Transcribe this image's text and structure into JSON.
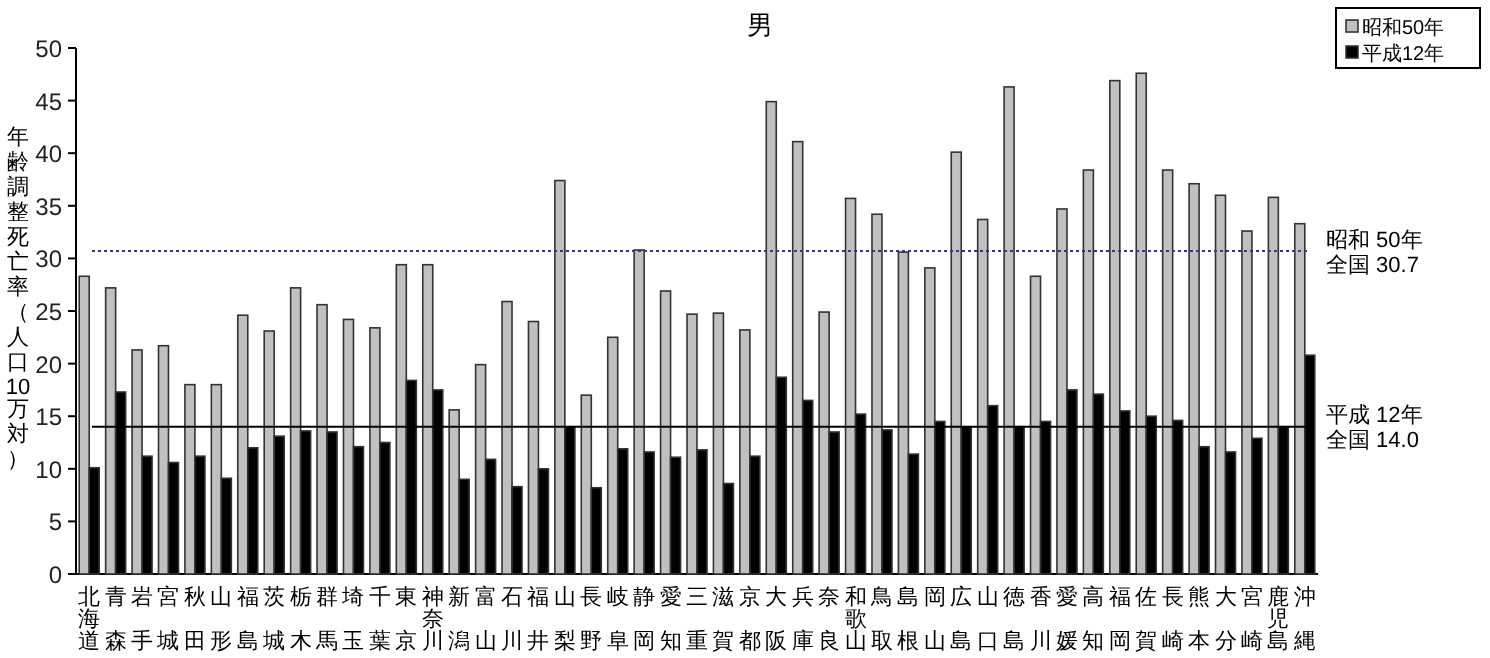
{
  "chart_data": {
    "type": "bar",
    "title": "男",
    "ylabel": "年齢調整死亡率（人口10万対）",
    "categories": [
      "北海道",
      "青森",
      "岩手",
      "宮城",
      "秋田",
      "山形",
      "福島",
      "茨城",
      "栃木",
      "群馬",
      "埼玉",
      "千葉",
      "東京",
      "神奈川",
      "新潟",
      "富山",
      "石川",
      "福井",
      "山梨",
      "長野",
      "岐阜",
      "静岡",
      "愛知",
      "三重",
      "滋賀",
      "京都",
      "大阪",
      "兵庫",
      "奈良",
      "和歌山",
      "鳥取",
      "島根",
      "岡山",
      "広島",
      "山口",
      "徳島",
      "香川",
      "愛媛",
      "高知",
      "福岡",
      "佐賀",
      "長崎",
      "熊本",
      "大分",
      "宮崎",
      "鹿児島",
      "沖縄"
    ],
    "series": [
      {
        "name": "昭和50年",
        "color": "#c0c0c0",
        "values": [
          28.3,
          27.2,
          21.3,
          21.7,
          18.0,
          18.0,
          24.6,
          23.1,
          27.2,
          25.6,
          24.2,
          23.4,
          29.4,
          29.4,
          15.6,
          19.9,
          25.9,
          24.0,
          37.4,
          17.0,
          22.5,
          30.8,
          26.9,
          24.7,
          24.8,
          23.2,
          44.9,
          41.1,
          24.9,
          35.7,
          34.2,
          30.6,
          29.1,
          40.1,
          33.7,
          46.3,
          28.3,
          34.7,
          38.4,
          46.9,
          47.6,
          38.4,
          37.1,
          36.0,
          32.6,
          35.8,
          33.3
        ]
      },
      {
        "name": "平成12年",
        "color": "#000000",
        "values": [
          10.1,
          17.3,
          11.2,
          10.6,
          11.2,
          9.1,
          12.0,
          13.1,
          13.6,
          13.5,
          12.1,
          12.5,
          18.4,
          17.5,
          9.0,
          10.9,
          8.3,
          10.0,
          14.0,
          8.2,
          11.9,
          11.6,
          11.1,
          11.8,
          8.6,
          11.2,
          18.7,
          16.5,
          13.5,
          15.2,
          13.7,
          11.4,
          14.5,
          14.0,
          16.0,
          14.0,
          14.5,
          17.5,
          17.1,
          15.5,
          15.0,
          14.6,
          12.1,
          11.6,
          12.9,
          14.0,
          20.8
        ]
      }
    ],
    "ylim": [
      0,
      50
    ],
    "yticks": [
      0,
      5,
      10,
      15,
      20,
      25,
      30,
      35,
      40,
      45,
      50
    ],
    "ref_lines": [
      {
        "axis": "y",
        "value": 30.7,
        "label": "昭和 50年全国 30.7",
        "color": "#333399",
        "line_style": "dotted"
      },
      {
        "axis": "y",
        "value": 14.0,
        "label": "平成 12年全国 14.0",
        "color": "#000000",
        "line_style": "solid"
      }
    ],
    "legend": "top right"
  }
}
